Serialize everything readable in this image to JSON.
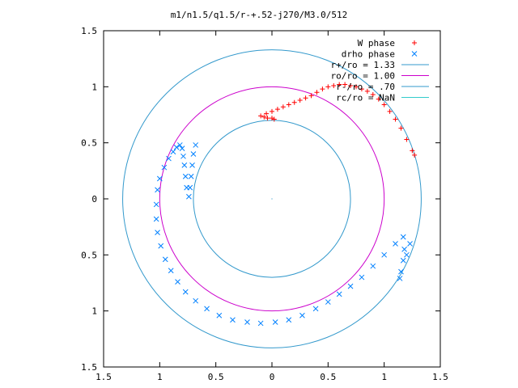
{
  "chart_data": {
    "type": "scatter",
    "title": "m1/n1.5/q1.5/r-+.52-j270/M3.0/512",
    "xlabel": "",
    "ylabel": "",
    "xlim": [
      -1.5,
      1.5
    ],
    "ylim": [
      -1.5,
      1.5
    ],
    "x_ticks": [
      -1.5,
      -1,
      -0.5,
      0,
      0.5,
      1,
      1.5
    ],
    "y_ticks": [
      -1.5,
      -1,
      -0.5,
      0,
      0.5,
      1,
      1.5
    ],
    "x_tick_labels": [
      "1.5",
      "1",
      "0.5",
      "0",
      "0.5",
      "1",
      "1.5"
    ],
    "y_tick_labels": [
      "1.5",
      "1",
      "0.5",
      "0",
      "0.5",
      "1",
      "1.5"
    ],
    "grid": false,
    "legend_position": "top-right",
    "legend": [
      {
        "label": "W phase",
        "marker": "plus",
        "color": "#ff0000"
      },
      {
        "label": "drho phase",
        "marker": "x",
        "color": "#0080ff"
      },
      {
        "label": "r+/ro = 1.33",
        "marker": "line",
        "color": "#3399cc"
      },
      {
        "label": "ro/ro = 1.00",
        "marker": "line",
        "color": "#cc00cc"
      },
      {
        "label": "r-/ro = .70",
        "marker": "line",
        "color": "#3399cc"
      },
      {
        "label": "rc/ro = NaN",
        "marker": "line",
        "color": "#33cccc"
      }
    ],
    "circles": [
      {
        "radius": 1.33,
        "color": "#3399cc"
      },
      {
        "radius": 1.0,
        "color": "#cc00cc"
      },
      {
        "radius": 0.7,
        "color": "#3399cc"
      }
    ],
    "series": [
      {
        "name": "W phase",
        "marker": "plus",
        "color": "#ff0000",
        "points": [
          [
            -0.1,
            0.74
          ],
          [
            -0.07,
            0.73
          ],
          [
            -0.04,
            0.72
          ],
          [
            0.0,
            0.72
          ],
          [
            0.02,
            0.71
          ],
          [
            -0.05,
            0.76
          ],
          [
            0.0,
            0.78
          ],
          [
            0.05,
            0.8
          ],
          [
            0.1,
            0.82
          ],
          [
            0.15,
            0.84
          ],
          [
            0.2,
            0.86
          ],
          [
            0.25,
            0.88
          ],
          [
            0.3,
            0.9
          ],
          [
            0.35,
            0.92
          ],
          [
            0.4,
            0.95
          ],
          [
            0.45,
            0.98
          ],
          [
            0.5,
            1.0
          ],
          [
            0.55,
            1.01
          ],
          [
            0.6,
            1.02
          ],
          [
            0.65,
            1.02
          ],
          [
            0.7,
            1.01
          ],
          [
            0.75,
            1.0
          ],
          [
            0.8,
            0.98
          ],
          [
            0.85,
            0.96
          ],
          [
            0.9,
            0.93
          ],
          [
            0.95,
            0.89
          ],
          [
            1.0,
            0.84
          ],
          [
            1.05,
            0.78
          ],
          [
            1.1,
            0.71
          ],
          [
            1.15,
            0.63
          ],
          [
            1.2,
            0.53
          ],
          [
            1.25,
            0.43
          ],
          [
            1.27,
            0.39
          ]
        ]
      },
      {
        "name": "drho phase",
        "marker": "x",
        "color": "#0080ff",
        "points": [
          [
            -0.68,
            0.48
          ],
          [
            -0.7,
            0.4
          ],
          [
            -0.71,
            0.3
          ],
          [
            -0.72,
            0.2
          ],
          [
            -0.73,
            0.1
          ],
          [
            -0.74,
            0.02
          ],
          [
            -0.76,
            0.1
          ],
          [
            -0.77,
            0.2
          ],
          [
            -0.78,
            0.3
          ],
          [
            -0.79,
            0.38
          ],
          [
            -0.8,
            0.45
          ],
          [
            -0.82,
            0.48
          ],
          [
            -0.85,
            0.46
          ],
          [
            -0.88,
            0.42
          ],
          [
            -0.92,
            0.36
          ],
          [
            -0.96,
            0.28
          ],
          [
            -1.0,
            0.18
          ],
          [
            -1.02,
            0.08
          ],
          [
            -1.03,
            -0.05
          ],
          [
            -1.03,
            -0.18
          ],
          [
            -1.02,
            -0.3
          ],
          [
            -0.99,
            -0.42
          ],
          [
            -0.95,
            -0.54
          ],
          [
            -0.9,
            -0.64
          ],
          [
            -0.84,
            -0.74
          ],
          [
            -0.77,
            -0.83
          ],
          [
            -0.68,
            -0.91
          ],
          [
            -0.58,
            -0.98
          ],
          [
            -0.47,
            -1.04
          ],
          [
            -0.35,
            -1.08
          ],
          [
            -0.22,
            -1.1
          ],
          [
            -0.1,
            -1.11
          ],
          [
            0.03,
            -1.1
          ],
          [
            0.15,
            -1.08
          ],
          [
            0.27,
            -1.04
          ],
          [
            0.39,
            -0.98
          ],
          [
            0.5,
            -0.92
          ],
          [
            0.6,
            -0.85
          ],
          [
            0.7,
            -0.78
          ],
          [
            0.8,
            -0.7
          ],
          [
            0.9,
            -0.6
          ],
          [
            1.0,
            -0.5
          ],
          [
            1.1,
            -0.4
          ],
          [
            1.17,
            -0.34
          ],
          [
            1.18,
            -0.45
          ],
          [
            1.17,
            -0.55
          ],
          [
            1.15,
            -0.65
          ],
          [
            1.14,
            -0.71
          ],
          [
            1.2,
            -0.5
          ],
          [
            1.23,
            -0.4
          ]
        ]
      }
    ]
  }
}
